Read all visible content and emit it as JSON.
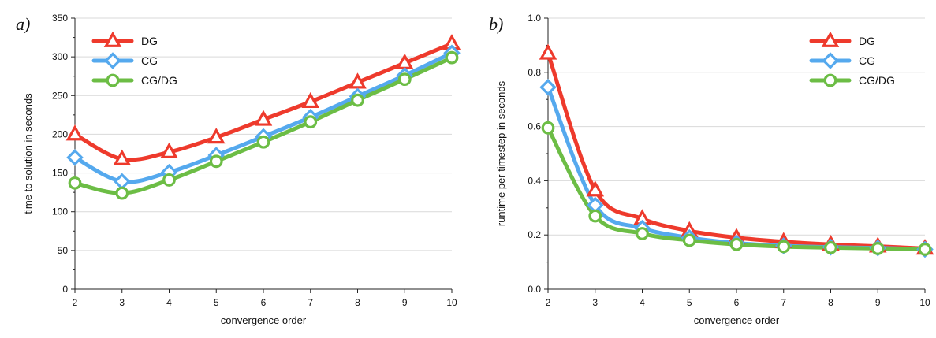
{
  "chart_data": [
    {
      "type": "line",
      "panel_label": "a)",
      "xlabel": "convergence order",
      "ylabel": "time to solution in seconds",
      "xlim": [
        2,
        10
      ],
      "ylim": [
        0,
        350
      ],
      "xticks": [
        "2",
        "3",
        "4",
        "5",
        "6",
        "7",
        "8",
        "9",
        "10"
      ],
      "yticks": [
        "0",
        "50",
        "100",
        "150",
        "200",
        "250",
        "300",
        "350"
      ],
      "grid": "horizontal",
      "legend_position": "top-left",
      "x": [
        2,
        3,
        4,
        5,
        6,
        7,
        8,
        9,
        10
      ],
      "series": [
        {
          "name": "DG",
          "marker": "triangle",
          "color": "#ee3a2c",
          "values": [
            200,
            168,
            177,
            196,
            219,
            242,
            267,
            292,
            317
          ]
        },
        {
          "name": "CG",
          "marker": "diamond",
          "color": "#55a9ee",
          "values": [
            170,
            139,
            151,
            173,
            197,
            222,
            249,
            276,
            305
          ]
        },
        {
          "name": "CG/DG",
          "marker": "circle",
          "color": "#6cbd45",
          "values": [
            137,
            124,
            141,
            165,
            190,
            216,
            244,
            271,
            299
          ]
        }
      ]
    },
    {
      "type": "line",
      "panel_label": "b)",
      "xlabel": "convergence order",
      "ylabel": "runtime per timestep in seconds",
      "xlim": [
        2,
        10
      ],
      "ylim": [
        0,
        1.0
      ],
      "xticks": [
        "2",
        "3",
        "4",
        "5",
        "6",
        "7",
        "8",
        "9",
        "10"
      ],
      "yticks": [
        "0.0",
        "0.2",
        "0.4",
        "0.6",
        "0.8",
        "1.0"
      ],
      "grid": "horizontal",
      "legend_position": "top-right",
      "x": [
        2,
        3,
        4,
        5,
        6,
        7,
        8,
        9,
        10
      ],
      "series": [
        {
          "name": "DG",
          "marker": "triangle",
          "color": "#ee3a2c",
          "values": [
            0.87,
            0.365,
            0.26,
            0.215,
            0.19,
            0.175,
            0.165,
            0.158,
            0.15
          ]
        },
        {
          "name": "CG",
          "marker": "diamond",
          "color": "#55a9ee",
          "values": [
            0.745,
            0.31,
            0.225,
            0.19,
            0.17,
            0.16,
            0.155,
            0.152,
            0.147
          ]
        },
        {
          "name": "CG/DG",
          "marker": "circle",
          "color": "#6cbd45",
          "values": [
            0.595,
            0.27,
            0.205,
            0.18,
            0.165,
            0.157,
            0.153,
            0.15,
            0.147
          ]
        }
      ]
    }
  ]
}
